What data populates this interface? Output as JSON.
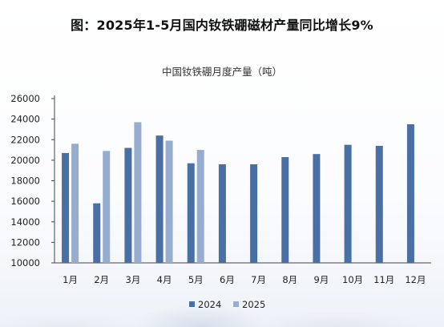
{
  "title": "图：2025年1-5月国内钕铁硼磁材产量同比增长9%",
  "chart_data": {
    "type": "bar",
    "title": "中国钕铁硼月度产量（吨）",
    "categories": [
      "1月",
      "2月",
      "3月",
      "4月",
      "5月",
      "6月",
      "7月",
      "8月",
      "9月",
      "10月",
      "11月",
      "12月"
    ],
    "series": [
      {
        "name": "2024",
        "color": "#4a6fa5",
        "values": [
          20700,
          15800,
          21200,
          22400,
          19700,
          19600,
          19600,
          20300,
          20600,
          21500,
          21400,
          23500
        ]
      },
      {
        "name": "2025",
        "color": "#97adcf",
        "values": [
          21600,
          20900,
          23700,
          21900,
          21000,
          null,
          null,
          null,
          null,
          null,
          null,
          null
        ]
      }
    ],
    "ylim": [
      10000,
      26000
    ],
    "yticks": [
      10000,
      12000,
      14000,
      16000,
      18000,
      20000,
      22000,
      24000,
      26000
    ],
    "legend_position": "bottom-center",
    "grid": false
  }
}
